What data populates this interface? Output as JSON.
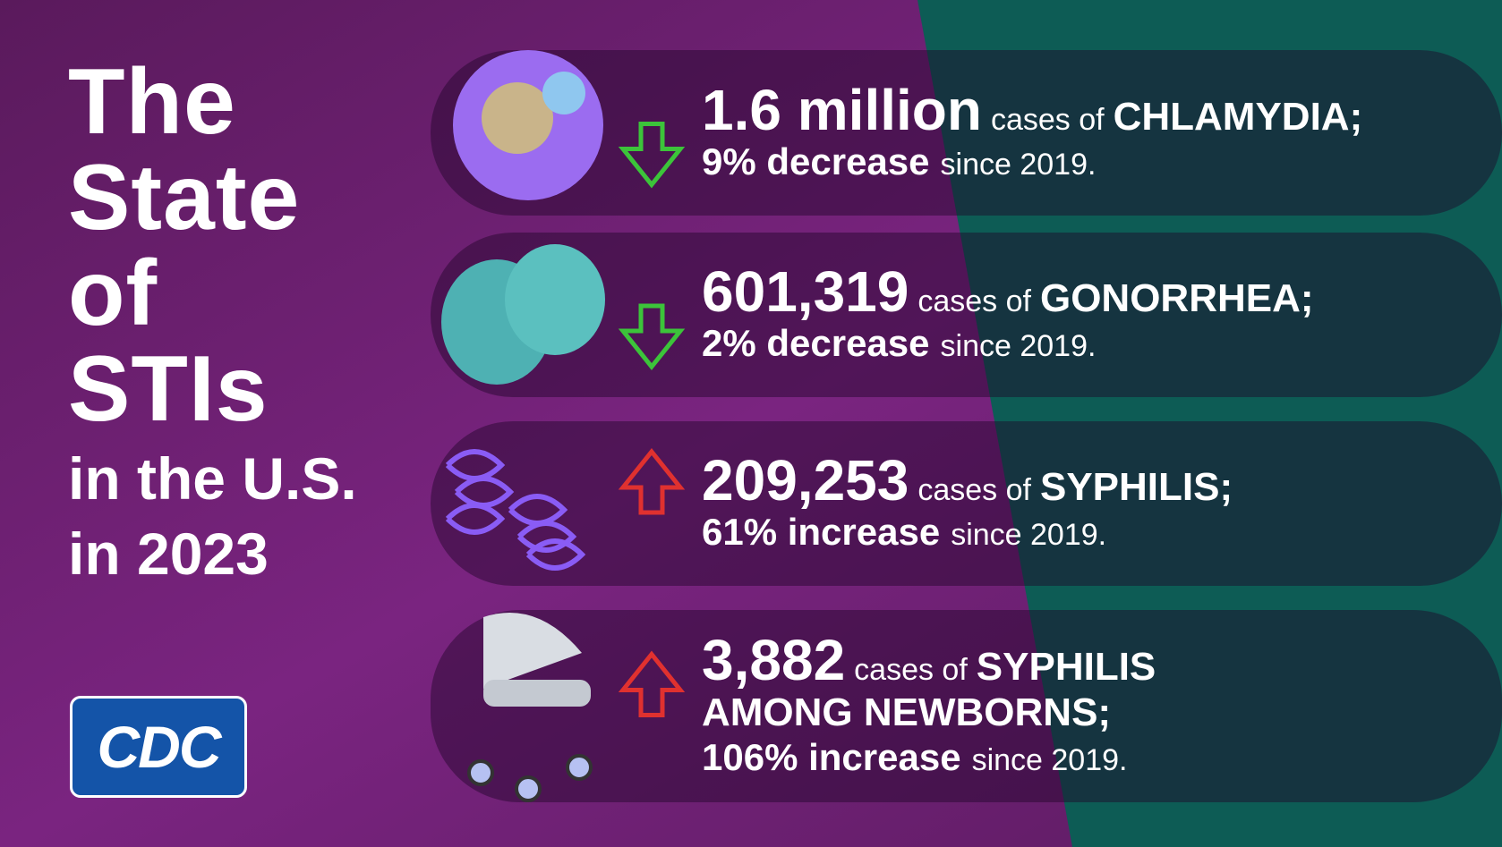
{
  "title": {
    "lines": [
      "The",
      "State",
      "of",
      "STIs"
    ],
    "sublines": [
      "in the U.S.",
      "in 2023"
    ]
  },
  "rows": [
    {
      "number": "1.6 million",
      "connector": "cases of",
      "disease": [
        "CHLAMYDIA;"
      ],
      "change": "9% decrease",
      "suffix": "since 2019.",
      "direction": "down"
    },
    {
      "number": "601,319",
      "connector": "cases of",
      "disease": [
        "GONORRHEA;"
      ],
      "change": "2% decrease",
      "suffix": "since 2019.",
      "direction": "down"
    },
    {
      "number": "209,253",
      "connector": "cases of",
      "disease": [
        "SYPHILIS;"
      ],
      "change": "61% increase",
      "suffix": "since 2019.",
      "direction": "up"
    },
    {
      "number": "3,882",
      "connector": "cases of",
      "disease": [
        "SYPHILIS",
        "AMONG NEWBORNS;"
      ],
      "change": "106% increase",
      "suffix": "since 2019.",
      "direction": "up"
    }
  ],
  "logo": "CDC"
}
